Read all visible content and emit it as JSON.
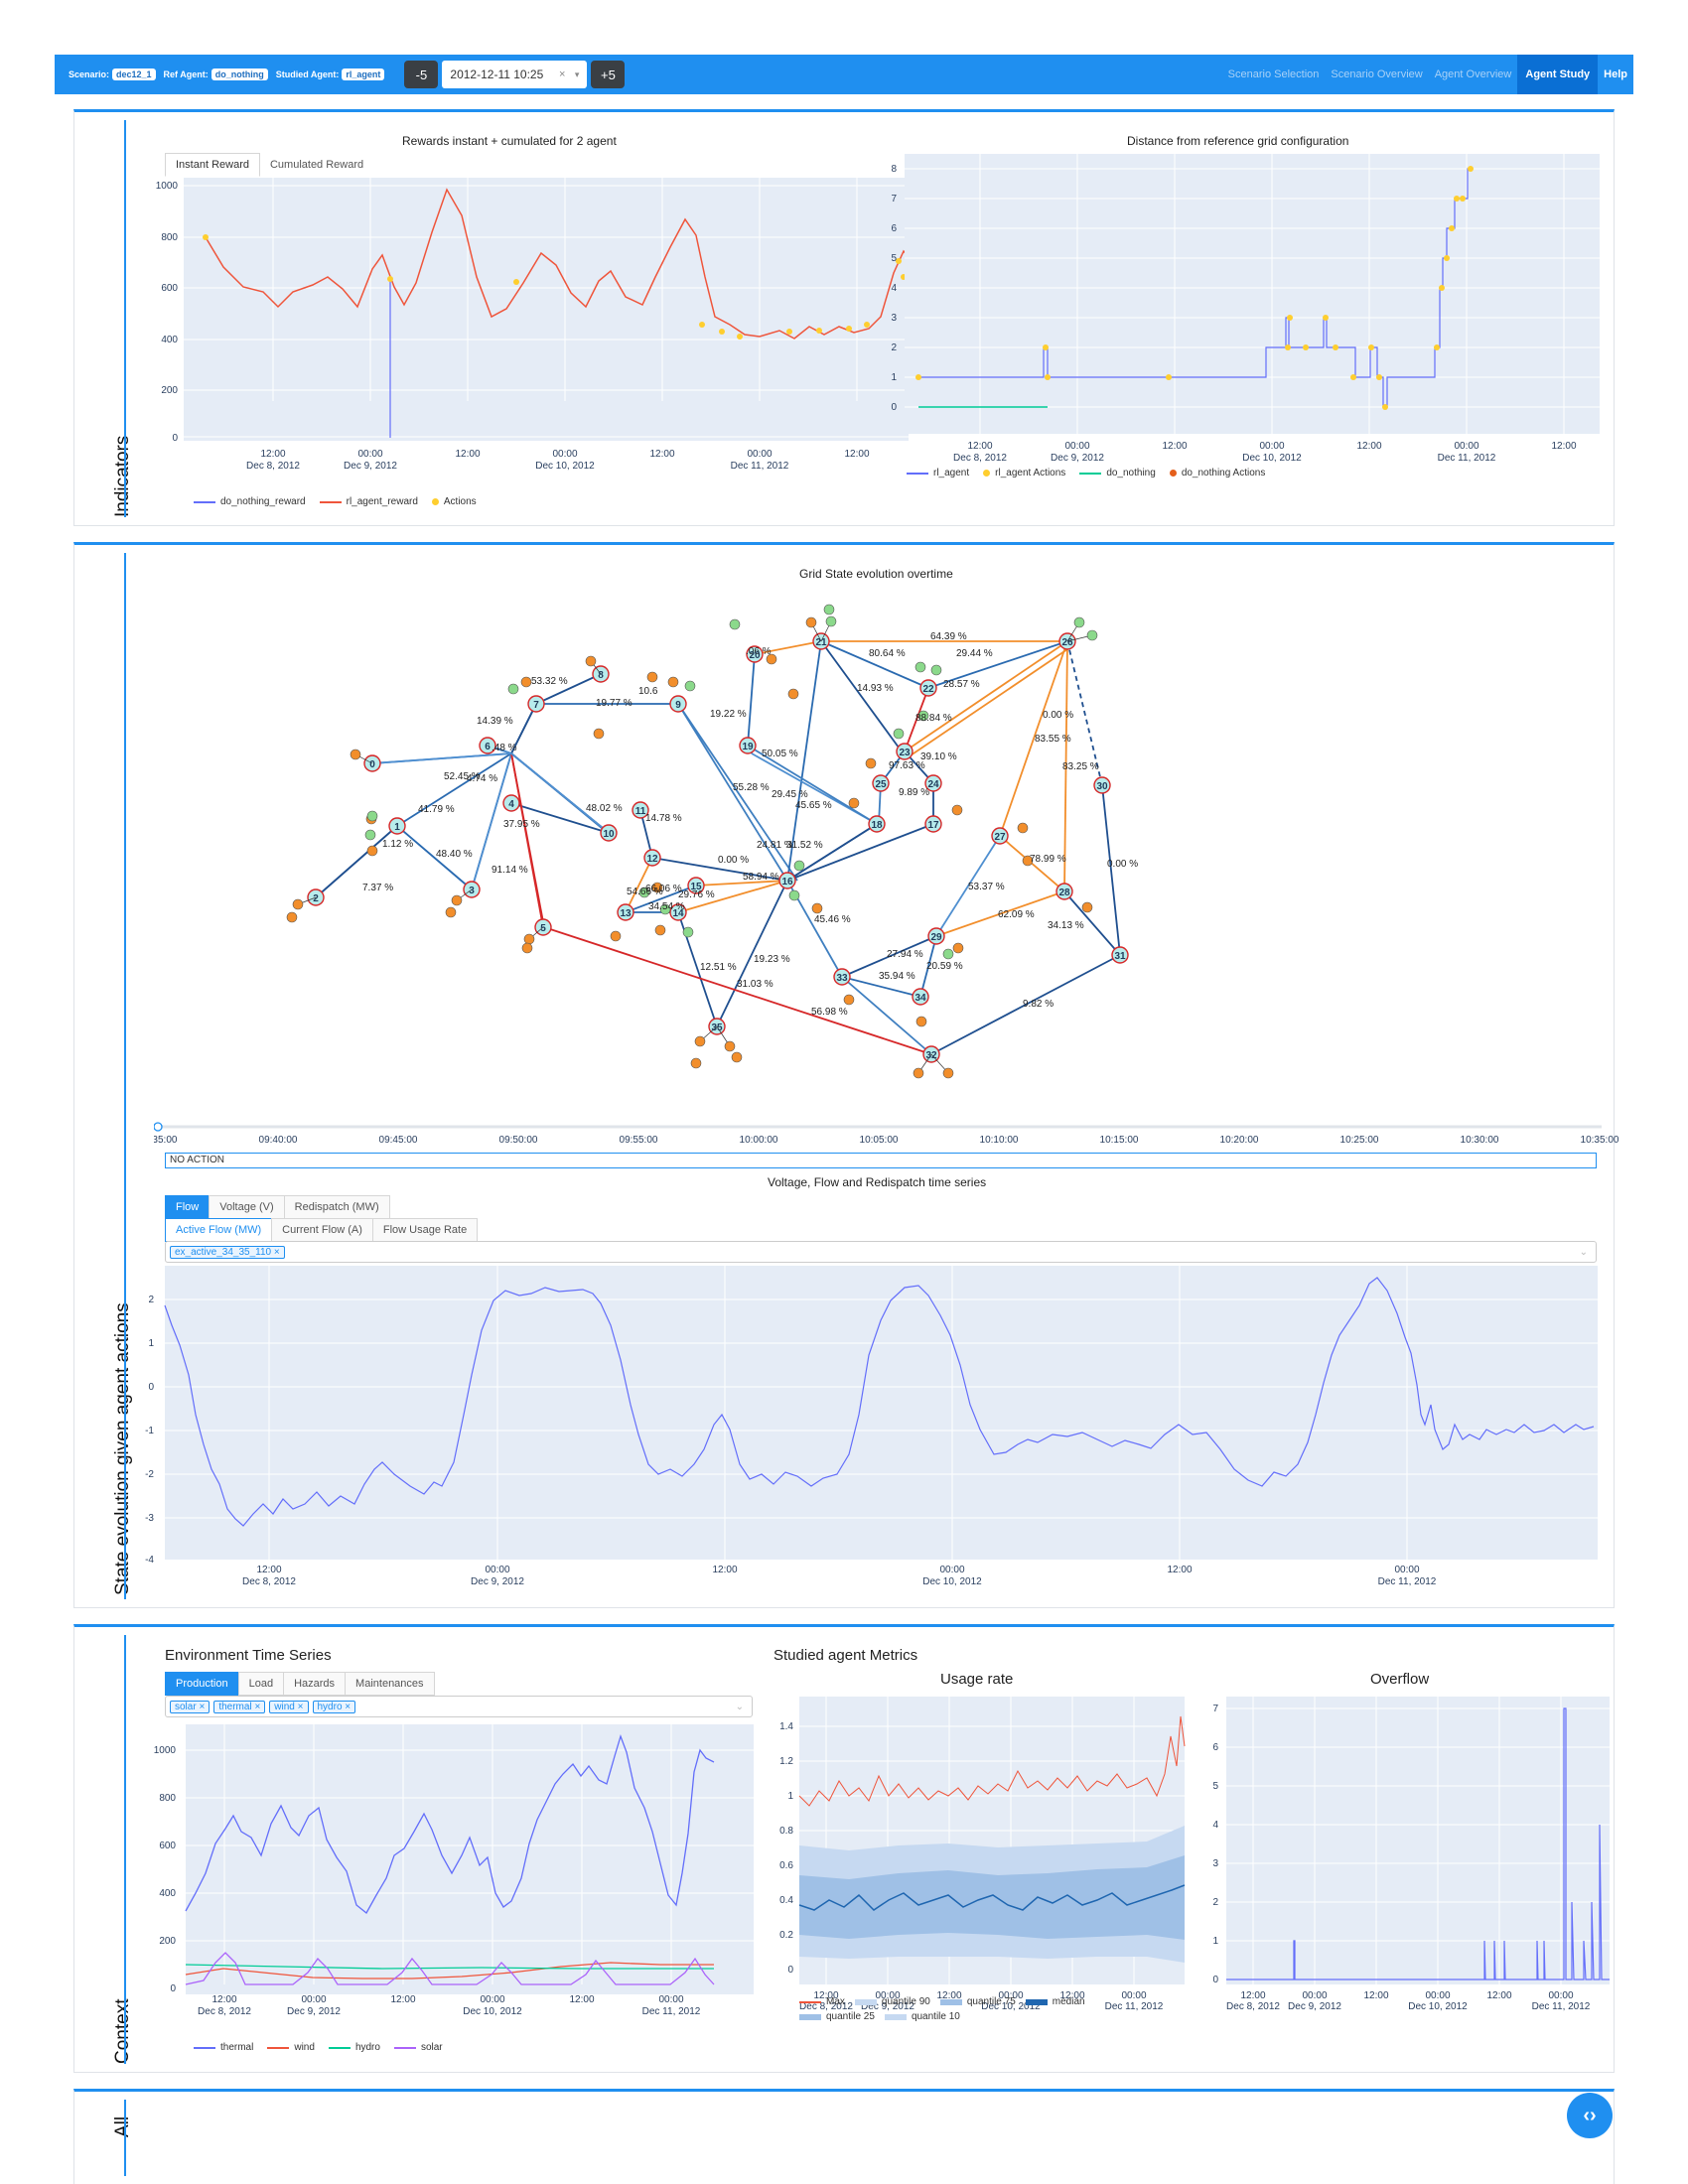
{
  "navbar": {
    "scenario_key": "Scenario:",
    "scenario_val": "dec12_1",
    "ref_key": "Ref Agent:",
    "ref_val": "do_nothing",
    "studied_key": "Studied Agent:",
    "studied_val": "rl_agent",
    "minus": "-5",
    "plus": "+5",
    "date": "2012-12-11 10:25",
    "links": [
      "Scenario Selection",
      "Scenario Overview",
      "Agent Overview",
      "Agent Study",
      "Help"
    ]
  },
  "sections": {
    "indicators": "Indicators",
    "state": "State evolution given agent actions",
    "context": "Context",
    "all": "All"
  },
  "rewards": {
    "title": "Rewards instant + cumulated for 2 agent",
    "tabs": [
      "Instant Reward",
      "Cumulated Reward"
    ],
    "yticks": [
      "1000",
      "800",
      "600",
      "400",
      "200",
      "0"
    ],
    "xticks": [
      "12:00",
      "00:00",
      "12:00",
      "00:00",
      "12:00",
      "00:00",
      "12:00"
    ],
    "xdates": [
      "Dec 8, 2012",
      "Dec 9, 2012",
      "Dec 10, 2012",
      "Dec 11, 2012"
    ],
    "legend": [
      "do_nothing_reward",
      "rl_agent_reward",
      "Actions"
    ]
  },
  "distance": {
    "title": "Distance from reference grid configuration",
    "yticks": [
      "8",
      "7",
      "6",
      "5",
      "4",
      "3",
      "2",
      "1",
      "0"
    ],
    "xticks": [
      "12:00",
      "00:00",
      "12:00",
      "00:00",
      "12:00",
      "00:00",
      "12:00"
    ],
    "xdates": [
      "Dec 8, 2012",
      "Dec 9, 2012",
      "Dec 10, 2012",
      "Dec 11, 2012"
    ],
    "legend": [
      "rl_agent",
      "rl_agent Actions",
      "do_nothing",
      "do_nothing Actions"
    ]
  },
  "grid": {
    "title": "Grid State evolution overtime",
    "slider_ticks": [
      "09:35:00",
      "09:40:00",
      "09:45:00",
      "09:50:00",
      "09:55:00",
      "10:00:00",
      "10:05:00",
      "10:10:00",
      "10:15:00",
      "10:20:00",
      "10:25:00",
      "10:30:00",
      "10:35:00"
    ],
    "action_text": "NO ACTION"
  },
  "flow": {
    "title": "Voltage, Flow and Redispatch time series",
    "tabs1": [
      "Flow",
      "Voltage (V)",
      "Redispatch (MW)"
    ],
    "tabs2": [
      "Active Flow (MW)",
      "Current Flow (A)",
      "Flow Usage Rate"
    ],
    "chip": "ex_active_34_35_110",
    "yticks": [
      "2",
      "1",
      "0",
      "-1",
      "-2",
      "-3",
      "-4"
    ],
    "xticks": [
      "12:00",
      "00:00",
      "12:00",
      "00:00",
      "12:00",
      "00:00"
    ],
    "xdates": [
      "Dec 8, 2012",
      "Dec 9, 2012",
      "Dec 10, 2012",
      "Dec 11, 2012"
    ]
  },
  "env": {
    "title": "Environment Time Series",
    "tabs": [
      "Production",
      "Load",
      "Hazards",
      "Maintenances"
    ],
    "chips": [
      "solar",
      "thermal",
      "wind",
      "hydro"
    ],
    "yticks": [
      "1000",
      "800",
      "600",
      "400",
      "200",
      "0"
    ],
    "xticks": [
      "12:00",
      "00:00",
      "12:00",
      "00:00",
      "12:00",
      "00:00"
    ],
    "xdates": [
      "Dec 8, 2012",
      "Dec 9, 2012",
      "Dec 10, 2012",
      "Dec 11, 2012"
    ],
    "legend": [
      "thermal",
      "wind",
      "hydro",
      "solar"
    ]
  },
  "metrics": {
    "title": "Studied agent Metrics",
    "usage_title": "Usage rate",
    "overflow_title": "Overflow",
    "usage_yticks": [
      "1.4",
      "1.2",
      "1",
      "0.8",
      "0.6",
      "0.4",
      "0.2",
      "0"
    ],
    "overflow_yticks": [
      "7",
      "6",
      "5",
      "4",
      "3",
      "2",
      "1",
      "0"
    ],
    "xticks": [
      "12:00",
      "00:00",
      "12:00",
      "00:00",
      "12:00",
      "00:00"
    ],
    "xdates": [
      "Dec 8, 2012",
      "Dec 9, 2012",
      "Dec 10, 2012",
      "Dec 11, 2012"
    ],
    "usage_legend": [
      "Max",
      "quantile 90",
      "quantile 75",
      "median",
      "quantile 25",
      "quantile 10"
    ]
  },
  "colors": {
    "accent": "#1f8ff0",
    "plot_bg": "#e5ecf6",
    "blue_series": "#636efa",
    "red_series": "#ef553b",
    "green_series": "#00cc96",
    "yellow_marker": "#fece2f",
    "purple_series": "#ab63fa"
  },
  "icons": {
    "fab": "code-toggle-icon"
  }
}
